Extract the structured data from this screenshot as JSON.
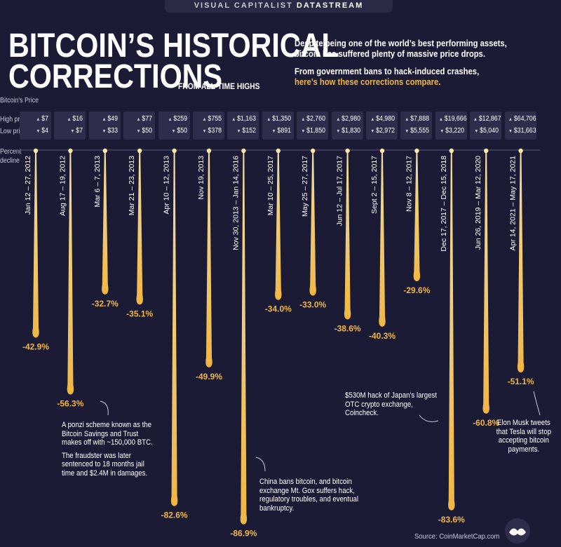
{
  "header": {
    "brand_prefix": "VISUAL CAPITALIST",
    "brand_suffix": "DATASTREAM",
    "title_line1": "BITCOIN’S HISTORICAL",
    "title_line2": "CORRECTIONS",
    "title_sub": "FROM ALL-TIME HIGHS",
    "intro_1": "Despite being one of the world’s best performing assets, bitcoin has suffered plenty of massive price drops.",
    "intro_2a": "From government bans to hack-induced crashes,",
    "intro_2b": "here’s how these corrections compare."
  },
  "labels": {
    "bitcoin_price": "Bitcoin's Price",
    "high_price": "High price",
    "low_price": "Low price",
    "percent": "Percent",
    "decline": "decline"
  },
  "chart_data": {
    "type": "bar",
    "orientation": "vertical-downward",
    "title": "Bitcoin's Historical Corrections from All-Time Highs",
    "ylabel": "Percent decline",
    "ylim": [
      0,
      -100
    ],
    "categories": [
      "Jan 12 – 27, 2012",
      "Aug 17 – 19, 2012",
      "Mar 6 – 7, 2013",
      "Mar 21 – 23, 2013",
      "Apr 10 – 12, 2013",
      "Nov 19, 2013",
      "Nov 30, 2013 – Jan 14, 2016",
      "Mar 10 – 25, 2017",
      "May 25 – 27, 2017",
      "Jun 12 – Jul 17, 2017",
      "Sept 2 – 15, 2017",
      "Nov 8 – 12, 2017",
      "Dec 17, 2017 – Dec 15, 2018",
      "Jun 26, 2019 – Mar 12, 2020",
      "Apr 14, 2021 – May 17, 2021"
    ],
    "values": [
      -42.9,
      -56.3,
      -32.7,
      -35.1,
      -82.6,
      -49.9,
      -86.9,
      -34.0,
      -33.0,
      -38.6,
      -40.3,
      -29.6,
      -83.6,
      -60.8,
      -51.1
    ],
    "value_labels": [
      "-42.9%",
      "-56.3%",
      "-32.7%",
      "-35.1%",
      "-82.6%",
      "-49.9%",
      "-86.9%",
      "-34.0%",
      "-33.0%",
      "-38.6%",
      "-40.3%",
      "-29.6%",
      "-83.6%",
      "-60.8%",
      "-51.1%"
    ],
    "high_prices": [
      "$7",
      "$16",
      "$49",
      "$77",
      "$259",
      "$755",
      "$1,163",
      "$1,350",
      "$2,760",
      "$2,980",
      "$4,980",
      "$7,888",
      "$19,666",
      "$12,867",
      "$64,706"
    ],
    "low_prices": [
      "$4",
      "$7",
      "$33",
      "$50",
      "$50",
      "$378",
      "$152",
      "$891",
      "$1,850",
      "$1,830",
      "$2,972",
      "$5,555",
      "$3,220",
      "$5,040",
      "$31,663"
    ]
  },
  "annotations": {
    "ponzi_1": "A ponzi scheme known as the Bitcoin Savings and Trust makes off with ~150,000 BTC.",
    "ponzi_2": "The fraudster was later sentenced to 18 months jail time and $2.4M in damages.",
    "china": "China bans bitcoin, and bitcoin exchange Mt. Gox suffers hack, regulatory troubles, and eventual bankruptcy.",
    "coincheck": "$530M hack of Japan's largest OTC crypto exchange, Coincheck.",
    "musk": "Elon Musk tweets that Tesla will stop accepting bitcoin payments."
  },
  "footer": {
    "source": "Source: CoinMarketCap.com"
  },
  "colors": {
    "background": "#1c1b36",
    "bar_gold": "#f0b643",
    "bar_light": "#fbe7a8",
    "accent_text": "#f0b643"
  }
}
